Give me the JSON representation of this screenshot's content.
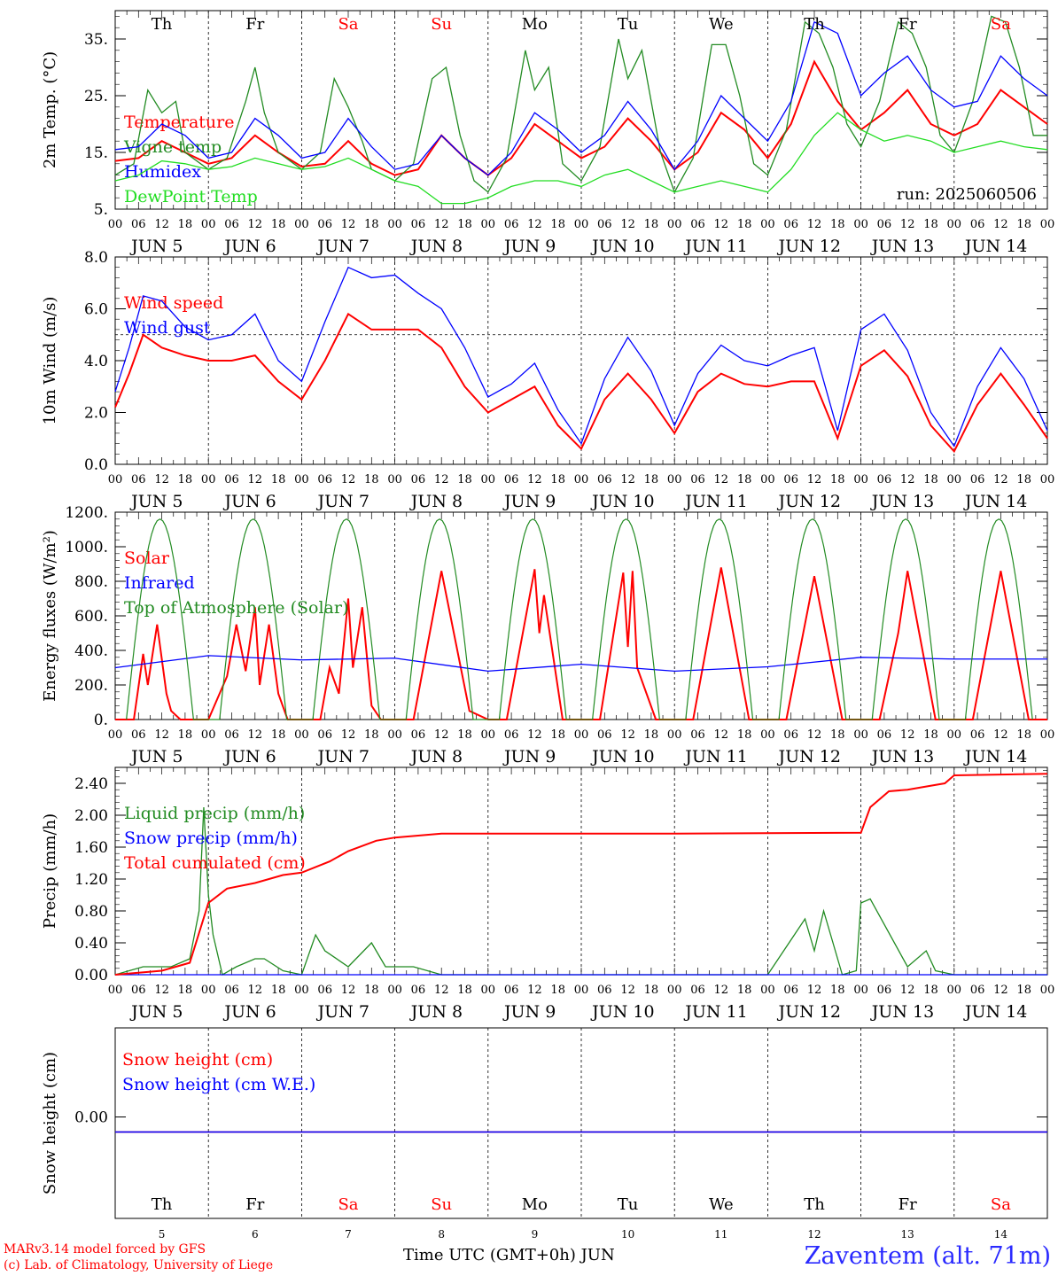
{
  "days": {
    "abbrevs": [
      "Th",
      "Fr",
      "Sa",
      "Su",
      "Mo",
      "Tu",
      "We",
      "Th",
      "Fr",
      "Sa"
    ],
    "weekend_flags": [
      false,
      false,
      true,
      true,
      false,
      false,
      false,
      false,
      false,
      true
    ],
    "dates": [
      "JUN  5",
      "JUN  6",
      "JUN  7",
      "JUN  8",
      "JUN  9",
      "JUN 10",
      "JUN 11",
      "JUN 12",
      "JUN 13",
      "JUN 14"
    ],
    "day_numbers": [
      "5",
      "6",
      "7",
      "8",
      "9",
      "10",
      "11",
      "12",
      "13",
      "14"
    ],
    "hour_labels": [
      "00",
      "06",
      "12",
      "18"
    ],
    "end_hour_label": "00"
  },
  "colors": {
    "red": "#ff0000",
    "green": "#228b22",
    "blue": "#0000ff",
    "lightgreen": "#22dd22",
    "grey": "#000000"
  },
  "run_label": "run: 2025060506",
  "footer": {
    "model_line": "MARv3.14 model forced by GFS",
    "copyright_line": "(c) Lab. of Climatology, University of Liege",
    "x_title": "Time UTC (GMT+0h) JUN",
    "station": "Zaventem (alt. 71m)"
  },
  "chart_data": [
    {
      "type": "line",
      "ylabel": "2m Temp. (°C)",
      "ylim": [
        5,
        40
      ],
      "ytick_values": [
        5,
        15,
        25,
        35
      ],
      "ytick_labels": [
        "5.",
        "15.",
        "25.",
        "35."
      ],
      "x_unit": "days since JUN 5 00 UTC",
      "series": [
        {
          "name": "Temperature",
          "color": "red",
          "x": [
            0,
            0.25,
            0.5,
            0.75,
            1,
            1.25,
            1.5,
            1.75,
            2,
            2.25,
            2.5,
            2.75,
            3,
            3.25,
            3.5,
            3.75,
            4,
            4.25,
            4.5,
            4.75,
            5,
            5.25,
            5.5,
            5.75,
            6,
            6.25,
            6.5,
            6.75,
            7,
            7.25,
            7.5,
            7.75,
            8,
            8.25,
            8.5,
            8.75,
            9,
            9.25,
            9.5,
            9.75,
            10
          ],
          "values": [
            13.5,
            14,
            17,
            15,
            13,
            14,
            18,
            15,
            12.5,
            13,
            17,
            13,
            11,
            12,
            18,
            14,
            11,
            14,
            20,
            17,
            14,
            16,
            21,
            17,
            12,
            15,
            22,
            19,
            14,
            20,
            31,
            24,
            19,
            22,
            26,
            20,
            18,
            20,
            26,
            23,
            20
          ]
        },
        {
          "name": "Vigne temp",
          "color": "green",
          "x": [
            0,
            0.2,
            0.35,
            0.5,
            0.65,
            0.75,
            1,
            1.2,
            1.4,
            1.5,
            1.6,
            1.75,
            2,
            2.2,
            2.35,
            2.5,
            2.65,
            2.75,
            3,
            3.2,
            3.4,
            3.55,
            3.7,
            3.85,
            4,
            4.2,
            4.4,
            4.5,
            4.65,
            4.8,
            5,
            5.2,
            5.4,
            5.5,
            5.65,
            5.85,
            6,
            6.2,
            6.4,
            6.55,
            6.7,
            6.85,
            7,
            7.2,
            7.4,
            7.55,
            7.7,
            7.85,
            8,
            8.2,
            8.4,
            8.55,
            8.7,
            8.85,
            9,
            9.2,
            9.4,
            9.55,
            9.7,
            9.85,
            10
          ],
          "values": [
            11,
            13,
            26,
            22,
            24,
            15,
            12,
            14,
            24,
            30,
            22,
            15,
            12,
            15,
            28,
            23,
            17,
            12,
            10,
            13,
            28,
            30,
            18,
            10,
            8,
            14,
            33,
            26,
            30,
            13,
            10,
            16,
            35,
            28,
            33,
            15,
            8,
            14,
            34,
            34,
            25,
            13,
            11,
            19,
            38,
            36,
            30,
            20,
            16,
            24,
            38,
            36,
            30,
            18,
            15,
            24,
            39,
            38,
            30,
            18,
            18
          ]
        },
        {
          "name": "Humidex",
          "color": "blue",
          "x": [
            0,
            0.25,
            0.5,
            0.75,
            1,
            1.25,
            1.5,
            1.75,
            2,
            2.25,
            2.5,
            2.75,
            3,
            3.25,
            3.5,
            3.75,
            4,
            4.25,
            4.5,
            4.75,
            5,
            5.25,
            5.5,
            5.75,
            6,
            6.25,
            6.5,
            6.75,
            7,
            7.25,
            7.5,
            7.75,
            8,
            8.25,
            8.5,
            8.75,
            9,
            9.25,
            9.5,
            9.75,
            10
          ],
          "values": [
            15.5,
            16,
            20,
            18,
            14,
            15,
            21,
            18,
            14,
            15,
            21,
            16,
            12,
            13,
            18,
            14,
            11,
            15,
            22,
            19,
            15,
            18,
            24,
            19,
            12,
            17,
            25,
            21,
            17,
            24,
            38,
            36,
            25,
            29,
            32,
            26,
            23,
            24,
            32,
            28,
            25
          ]
        },
        {
          "name": "DewPoint Temp",
          "color": "lightgreen",
          "x": [
            0,
            0.25,
            0.5,
            0.75,
            1,
            1.25,
            1.5,
            1.75,
            2,
            2.25,
            2.5,
            2.75,
            3,
            3.25,
            3.5,
            3.75,
            4,
            4.25,
            4.5,
            4.75,
            5,
            5.25,
            5.5,
            5.75,
            6,
            6.25,
            6.5,
            6.75,
            7,
            7.25,
            7.5,
            7.75,
            8,
            8.25,
            8.5,
            8.75,
            9,
            9.25,
            9.5,
            9.75,
            10
          ],
          "values": [
            10,
            11,
            13.5,
            13,
            12,
            12.5,
            14,
            13,
            12,
            12.5,
            14,
            12,
            10,
            9,
            6,
            6,
            7,
            9,
            10,
            10,
            9,
            11,
            12,
            10,
            8,
            9,
            10,
            9,
            8,
            12,
            18,
            22,
            19,
            17,
            18,
            17,
            15,
            16,
            17,
            16,
            15.5
          ]
        }
      ]
    },
    {
      "type": "line",
      "ylabel": "10m Wind (m/s)",
      "ylim": [
        0,
        8
      ],
      "ytick_values": [
        0,
        2,
        4,
        6,
        8
      ],
      "ytick_labels": [
        "0.0",
        "2.0",
        "4.0",
        "6.0",
        "8.0"
      ],
      "reference_line": 5,
      "x_unit": "days since JUN 5 00 UTC",
      "series": [
        {
          "name": "Wind speed",
          "color": "red",
          "x": [
            0,
            0.15,
            0.3,
            0.5,
            0.75,
            1,
            1.25,
            1.5,
            1.75,
            2,
            2.25,
            2.5,
            2.75,
            3,
            3.25,
            3.5,
            3.75,
            4,
            4.25,
            4.5,
            4.75,
            5,
            5.25,
            5.5,
            5.75,
            6,
            6.25,
            6.5,
            6.75,
            7,
            7.25,
            7.5,
            7.75,
            8,
            8.25,
            8.5,
            8.75,
            9,
            9.25,
            9.5,
            9.75,
            10
          ],
          "values": [
            2.2,
            3.5,
            5,
            4.5,
            4.2,
            4,
            4,
            4.2,
            3.2,
            2.5,
            4,
            5.8,
            5.2,
            5.2,
            5.2,
            4.5,
            3,
            2,
            2.5,
            3,
            1.5,
            0.6,
            2.5,
            3.5,
            2.5,
            1.2,
            2.8,
            3.5,
            3.1,
            3,
            3.2,
            3.2,
            1,
            3.8,
            4.4,
            3.4,
            1.5,
            0.5,
            2.3,
            3.5,
            2.3,
            1
          ]
        },
        {
          "name": "Wind gust",
          "color": "blue",
          "x": [
            0,
            0.15,
            0.3,
            0.5,
            0.75,
            1,
            1.25,
            1.5,
            1.75,
            2,
            2.25,
            2.5,
            2.75,
            3,
            3.25,
            3.5,
            3.75,
            4,
            4.25,
            4.5,
            4.75,
            5,
            5.25,
            5.5,
            5.75,
            6,
            6.25,
            6.5,
            6.75,
            7,
            7.25,
            7.5,
            7.75,
            8,
            8.25,
            8.5,
            8.75,
            9,
            9.25,
            9.5,
            9.75,
            10
          ],
          "values": [
            2.8,
            4.5,
            6.5,
            6.3,
            5.3,
            4.8,
            5,
            5.8,
            4,
            3.2,
            5.5,
            7.6,
            7.2,
            7.3,
            6.6,
            6,
            4.5,
            2.6,
            3.1,
            3.9,
            2.1,
            0.8,
            3.3,
            4.9,
            3.6,
            1.5,
            3.5,
            4.6,
            4,
            3.8,
            4.2,
            4.5,
            1.3,
            5.2,
            5.8,
            4.4,
            2,
            0.7,
            3,
            4.5,
            3.3,
            1.3
          ]
        }
      ]
    },
    {
      "type": "line",
      "ylabel": "Energy fluxes (W/m²)",
      "ylim": [
        0,
        1200
      ],
      "ytick_values": [
        0,
        200,
        400,
        600,
        800,
        1000,
        1200
      ],
      "ytick_labels": [
        "0.",
        "200.",
        "400.",
        "600.",
        "800.",
        "1000.",
        "1200."
      ],
      "x_unit": "days since JUN 5 00 UTC",
      "series": [
        {
          "name": "Solar",
          "color": "red",
          "x": [
            0,
            0.2,
            0.3,
            0.35,
            0.45,
            0.55,
            0.6,
            0.7,
            0.8,
            1,
            1.2,
            1.3,
            1.4,
            1.5,
            1.55,
            1.65,
            1.75,
            1.85,
            2,
            2.2,
            2.3,
            2.4,
            2.5,
            2.55,
            2.65,
            2.75,
            2.85,
            3,
            3.2,
            3.5,
            3.8,
            4,
            4.2,
            4.5,
            4.55,
            4.6,
            4.8,
            5,
            5.2,
            5.45,
            5.5,
            5.55,
            5.6,
            5.8,
            6,
            6.2,
            6.5,
            6.8,
            7,
            7.2,
            7.5,
            7.8,
            8,
            8.2,
            8.4,
            8.5,
            8.8,
            9,
            9.2,
            9.5,
            9.8,
            10
          ],
          "values": [
            0,
            0,
            380,
            200,
            550,
            150,
            50,
            0,
            0,
            0,
            250,
            550,
            280,
            650,
            200,
            550,
            150,
            0,
            0,
            0,
            300,
            150,
            700,
            300,
            650,
            80,
            0,
            0,
            0,
            860,
            50,
            0,
            0,
            870,
            500,
            720,
            0,
            0,
            0,
            850,
            420,
            860,
            300,
            0,
            0,
            0,
            880,
            0,
            0,
            0,
            830,
            0,
            0,
            0,
            500,
            860,
            0,
            0,
            0,
            860,
            0,
            0
          ]
        },
        {
          "name": "Infrared",
          "color": "blue",
          "x": [
            0,
            1,
            2,
            3,
            4,
            5,
            6,
            7,
            8,
            9,
            10
          ],
          "values": [
            300,
            370,
            345,
            355,
            280,
            320,
            280,
            305,
            360,
            350,
            350
          ]
        },
        {
          "name": "Top of Atmosphere (Solar)",
          "color": "green",
          "shape": "daily",
          "peak": 1160
        }
      ]
    },
    {
      "type": "line",
      "ylabel": "Precip (mm/h)",
      "ylim": [
        0,
        2.6
      ],
      "ytick_values": [
        0,
        0.4,
        0.8,
        1.2,
        1.6,
        2.0,
        2.4
      ],
      "ytick_labels": [
        "0.00",
        "0.40",
        "0.80",
        "1.20",
        "1.60",
        "2.00",
        "2.40"
      ],
      "x_unit": "days since JUN 5 00 UTC",
      "series": [
        {
          "name": "Liquid precip (mm/h)",
          "color": "green",
          "x": [
            0,
            0.3,
            0.6,
            0.8,
            0.9,
            0.95,
            1,
            1.05,
            1.15,
            1.3,
            1.5,
            1.6,
            1.8,
            2,
            2.15,
            2.25,
            2.5,
            2.75,
            2.9,
            3.2,
            3.5,
            7,
            7.4,
            7.5,
            7.6,
            7.8,
            7.95,
            8,
            8.1,
            8.5,
            8.7,
            8.8,
            9,
            10
          ],
          "values": [
            0,
            0.1,
            0.1,
            0.2,
            0.8,
            2.1,
            1.0,
            0.5,
            0,
            0.1,
            0.2,
            0.2,
            0.05,
            0,
            0.5,
            0.3,
            0.1,
            0.4,
            0.1,
            0.1,
            0,
            0,
            0.7,
            0.3,
            0.8,
            0,
            0.05,
            0.9,
            0.95,
            0.1,
            0.3,
            0.05,
            0,
            0
          ]
        },
        {
          "name": "Snow precip (mm/h)",
          "color": "blue",
          "x": [
            0,
            10
          ],
          "values": [
            0,
            0
          ]
        },
        {
          "name": "Total cumulated (cm)",
          "color": "red",
          "x": [
            0,
            0.5,
            0.8,
            1,
            1.2,
            1.5,
            1.8,
            2.0,
            2.3,
            2.5,
            2.8,
            3.0,
            3.5,
            4,
            6,
            8,
            8.1,
            8.3,
            8.5,
            8.9,
            9,
            10
          ],
          "values": [
            0,
            0.05,
            0.15,
            0.9,
            1.08,
            1.15,
            1.25,
            1.28,
            1.42,
            1.55,
            1.68,
            1.72,
            1.77,
            1.77,
            1.77,
            1.78,
            2.1,
            2.3,
            2.32,
            2.4,
            2.5,
            2.52
          ]
        }
      ]
    },
    {
      "type": "line",
      "ylabel": "Snow height (cm)",
      "ytick_values": [
        0
      ],
      "ytick_labels": [
        "0.00"
      ],
      "x_unit": "days since JUN 5 00 UTC",
      "series": [
        {
          "name": "Snow height (cm)",
          "color": "red",
          "x": [
            0,
            10
          ],
          "values": [
            0,
            0
          ]
        },
        {
          "name": "Snow height (cm W.E.)",
          "color": "blue",
          "x": [
            0,
            10
          ],
          "values": [
            0,
            0
          ]
        }
      ]
    }
  ]
}
